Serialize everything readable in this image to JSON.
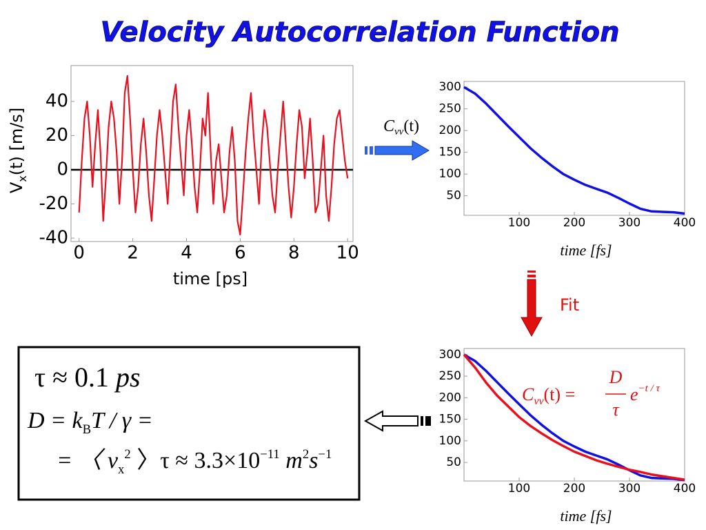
{
  "title": "Velocity Autocorrelation Function",
  "chart_data": [
    {
      "type": "line",
      "xlabel": "time [ps]",
      "ylabel_main": "V",
      "ylabel_sub": "x",
      "ylabel_rest": "(t)  [m/s]",
      "xlim": [
        -0.3,
        10.2
      ],
      "ylim": [
        -42,
        61
      ],
      "xticks": [
        0,
        2,
        4,
        6,
        8,
        10
      ],
      "yticks": [
        -40,
        -20,
        0,
        20,
        40
      ],
      "zero_line": true,
      "x": [
        0,
        0.1,
        0.2,
        0.3,
        0.4,
        0.5,
        0.6,
        0.7,
        0.8,
        0.9,
        1,
        1.1,
        1.2,
        1.3,
        1.4,
        1.5,
        1.6,
        1.7,
        1.8,
        1.9,
        2,
        2.1,
        2.2,
        2.3,
        2.4,
        2.5,
        2.6,
        2.7,
        2.8,
        2.9,
        3,
        3.1,
        3.2,
        3.3,
        3.4,
        3.5,
        3.6,
        3.7,
        3.8,
        3.9,
        4,
        4.1,
        4.2,
        4.3,
        4.4,
        4.5,
        4.6,
        4.7,
        4.8,
        4.9,
        5,
        5.1,
        5.2,
        5.3,
        5.4,
        5.5,
        5.6,
        5.7,
        5.8,
        5.9,
        6,
        6.1,
        6.2,
        6.3,
        6.4,
        6.5,
        6.6,
        6.7,
        6.8,
        6.9,
        7,
        7.1,
        7.2,
        7.3,
        7.4,
        7.5,
        7.6,
        7.7,
        7.8,
        7.9,
        8,
        8.1,
        8.2,
        8.3,
        8.4,
        8.5,
        8.6,
        8.7,
        8.8,
        8.9,
        9,
        9.1,
        9.2,
        9.3,
        9.4,
        9.5,
        9.6,
        9.7,
        9.8,
        9.9,
        10
      ],
      "series": [
        {
          "color": "#e8101e",
          "values": [
            -25,
            5,
            30,
            40,
            20,
            -10,
            15,
            35,
            10,
            -30,
            -5,
            25,
            40,
            30,
            10,
            -20,
            5,
            45,
            55,
            30,
            0,
            -25,
            -10,
            15,
            30,
            10,
            -15,
            -30,
            -5,
            20,
            35,
            20,
            0,
            -20,
            10,
            40,
            50,
            25,
            5,
            -15,
            20,
            35,
            15,
            -10,
            -25,
            0,
            30,
            20,
            45,
            10,
            -20,
            5,
            15,
            -5,
            -25,
            -15,
            10,
            25,
            5,
            -30,
            -38,
            -15,
            10,
            30,
            45,
            20,
            0,
            -20,
            15,
            35,
            25,
            5,
            -15,
            -25,
            0,
            20,
            40,
            15,
            -10,
            -28,
            -10,
            15,
            35,
            25,
            -5,
            10,
            30,
            5,
            -25,
            -20,
            0,
            20,
            -15,
            -30,
            -10,
            15,
            30,
            35,
            20,
            5,
            -5
          ]
        }
      ]
    },
    {
      "type": "line",
      "xlabel": "time [fs]",
      "curve_label_main": "C",
      "curve_label_sub": "vv",
      "curve_label_rest": "(t)",
      "xlim": [
        0,
        400
      ],
      "ylim": [
        5,
        313
      ],
      "xticks": [
        100,
        200,
        300,
        400
      ],
      "yticks": [
        50,
        100,
        150,
        200,
        250,
        300
      ],
      "x": [
        0,
        20,
        40,
        60,
        80,
        100,
        120,
        140,
        160,
        180,
        200,
        220,
        240,
        260,
        280,
        300,
        320,
        340,
        360,
        380,
        400
      ],
      "series": [
        {
          "color": "#1010e0",
          "values": [
            300,
            285,
            262,
            236,
            210,
            185,
            160,
            138,
            118,
            100,
            87,
            75,
            66,
            57,
            45,
            32,
            20,
            14,
            13,
            12,
            9
          ]
        }
      ]
    },
    {
      "type": "line",
      "xlabel": "time [fs]",
      "xlim": [
        0,
        400
      ],
      "ylim": [
        7,
        314
      ],
      "xticks": [
        100,
        200,
        300,
        400
      ],
      "yticks": [
        50,
        100,
        150,
        200,
        250,
        300
      ],
      "x": [
        0,
        20,
        40,
        60,
        80,
        100,
        120,
        140,
        160,
        180,
        200,
        220,
        240,
        260,
        280,
        300,
        320,
        340,
        360,
        380,
        400
      ],
      "series": [
        {
          "color": "#1010e0",
          "values": [
            300,
            285,
            262,
            236,
            210,
            185,
            160,
            138,
            118,
            100,
            87,
            75,
            66,
            57,
            45,
            32,
            20,
            14,
            13,
            12,
            9
          ]
        },
        {
          "color": "#e8101e",
          "values": [
            300,
            270,
            235,
            205,
            180,
            155,
            135,
            118,
            102,
            88,
            75,
            65,
            55,
            47,
            40,
            33,
            28,
            22,
            18,
            14,
            10
          ]
        }
      ]
    }
  ],
  "fit_label": "Fit",
  "fit_formula": {
    "c": "C",
    "sub": "vv",
    "mid": "(t) = ",
    "num": "D",
    "den": "τ",
    "e": "e",
    "exp": "−t / τ"
  },
  "result": [
    [
      [
        "τ ≈ 0.1 ",
        ""
      ],
      [
        "ps",
        "i"
      ]
    ],
    [
      [
        "D = k",
        "i"
      ],
      [
        "B",
        "sub"
      ],
      [
        "T / γ =",
        "i"
      ]
    ],
    [
      [
        "= 〈 v",
        "i"
      ],
      [
        "x",
        "sub"
      ],
      [
        "2",
        "sup"
      ],
      [
        " 〉τ  ≈ 3.3×10",
        ""
      ],
      [
        "−11",
        "sup"
      ],
      [
        " m",
        "i"
      ],
      [
        "2",
        "sup"
      ],
      [
        "s",
        "i"
      ],
      [
        "−1",
        "sup"
      ]
    ]
  ]
}
